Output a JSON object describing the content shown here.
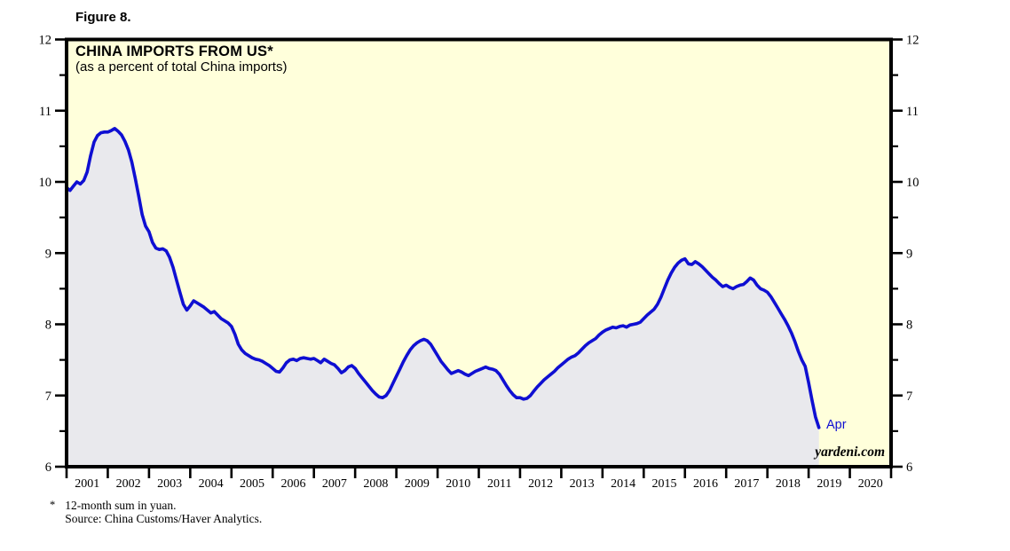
{
  "figure_label": "Figure 8.",
  "chart": {
    "title": "CHINA IMPORTS FROM US*",
    "subtitle": "(as a percent of total China imports)",
    "watermark": "yardeni.com",
    "end_point_label": "Apr"
  },
  "footnote": {
    "marker": "*",
    "line1": "12-month sum in yuan.",
    "line2": "Source: China Customs/Haver Analytics."
  },
  "chart_data": {
    "type": "area",
    "title": "CHINA IMPORTS FROM US*",
    "subtitle": "(as a percent of total China imports)",
    "frequency": "monthly",
    "x_start": "2001-01",
    "x_end": "2019-04",
    "end_point_label": "Apr",
    "ylim": [
      6,
      12
    ],
    "y_major_ticks": [
      6,
      7,
      8,
      9,
      10,
      11,
      12
    ],
    "y_minor_step": 0.5,
    "dual_y_axis": true,
    "grid": false,
    "x_tick_years": [
      2001,
      2002,
      2003,
      2004,
      2005,
      2006,
      2007,
      2008,
      2009,
      2010,
      2011,
      2012,
      2013,
      2014,
      2015,
      2016,
      2017,
      2018,
      2019,
      2020
    ],
    "colors": {
      "plot_bg": "#FFFFDB",
      "area_fill": "#E9E9ED",
      "line": "#0F0FD2",
      "axis": "#000000",
      "annotation": "#0F0FD2"
    },
    "series": [
      {
        "name": "China imports from US (percent of total China imports)",
        "values": [
          9.92,
          9.88,
          9.94,
          10.0,
          9.97,
          10.02,
          10.14,
          10.37,
          10.56,
          10.65,
          10.69,
          10.7,
          10.7,
          10.72,
          10.75,
          10.71,
          10.66,
          10.57,
          10.45,
          10.28,
          10.05,
          9.8,
          9.54,
          9.38,
          9.3,
          9.15,
          9.07,
          9.05,
          9.06,
          9.03,
          8.94,
          8.8,
          8.62,
          8.45,
          8.28,
          8.2,
          8.26,
          8.33,
          8.3,
          8.27,
          8.24,
          8.2,
          8.16,
          8.18,
          8.13,
          8.08,
          8.05,
          8.02,
          7.97,
          7.86,
          7.72,
          7.64,
          7.59,
          7.56,
          7.53,
          7.51,
          7.5,
          7.48,
          7.45,
          7.42,
          7.38,
          7.34,
          7.33,
          7.39,
          7.46,
          7.5,
          7.51,
          7.49,
          7.52,
          7.53,
          7.52,
          7.51,
          7.52,
          7.49,
          7.46,
          7.51,
          7.48,
          7.45,
          7.43,
          7.38,
          7.32,
          7.35,
          7.4,
          7.42,
          7.38,
          7.31,
          7.25,
          7.19,
          7.13,
          7.07,
          7.02,
          6.98,
          6.97,
          7.0,
          7.07,
          7.17,
          7.27,
          7.37,
          7.47,
          7.56,
          7.64,
          7.7,
          7.74,
          7.77,
          7.79,
          7.77,
          7.72,
          7.64,
          7.56,
          7.48,
          7.42,
          7.36,
          7.31,
          7.33,
          7.35,
          7.33,
          7.3,
          7.28,
          7.31,
          7.34,
          7.36,
          7.38,
          7.4,
          7.38,
          7.37,
          7.35,
          7.3,
          7.22,
          7.14,
          7.07,
          7.01,
          6.97,
          6.97,
          6.95,
          6.96,
          7.0,
          7.06,
          7.12,
          7.17,
          7.22,
          7.26,
          7.3,
          7.34,
          7.39,
          7.43,
          7.47,
          7.51,
          7.54,
          7.56,
          7.6,
          7.65,
          7.7,
          7.74,
          7.77,
          7.8,
          7.85,
          7.89,
          7.92,
          7.94,
          7.96,
          7.95,
          7.97,
          7.98,
          7.96,
          7.99,
          8.0,
          8.01,
          8.03,
          8.08,
          8.13,
          8.17,
          8.21,
          8.28,
          8.38,
          8.5,
          8.62,
          8.72,
          8.8,
          8.86,
          8.9,
          8.92,
          8.85,
          8.84,
          8.88,
          8.85,
          8.81,
          8.76,
          8.71,
          8.66,
          8.62,
          8.57,
          8.53,
          8.55,
          8.52,
          8.5,
          8.53,
          8.55,
          8.56,
          8.6,
          8.65,
          8.62,
          8.55,
          8.5,
          8.48,
          8.45,
          8.39,
          8.31,
          8.23,
          8.15,
          8.07,
          7.98,
          7.88,
          7.76,
          7.62,
          7.5,
          7.41,
          7.18,
          6.93,
          6.7,
          6.55
        ]
      }
    ]
  }
}
